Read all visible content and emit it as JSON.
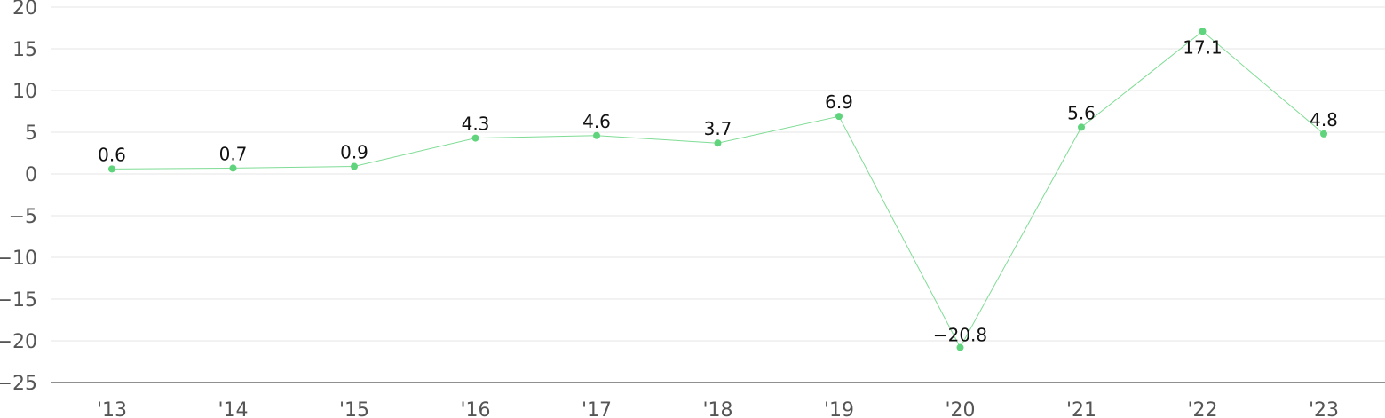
{
  "chart_data": {
    "type": "line",
    "categories": [
      "'13",
      "'14",
      "'15",
      "'16",
      "'17",
      "'18",
      "'19",
      "'20",
      "'21",
      "'22",
      "'23"
    ],
    "series": [
      {
        "values": [
          0.6,
          0.7,
          0.9,
          4.3,
          4.6,
          3.7,
          6.9,
          -20.8,
          5.6,
          17.1,
          4.8
        ]
      }
    ],
    "data_labels": [
      "0.6",
      "0.7",
      "0.9",
      "4.3",
      "4.6",
      "3.7",
      "6.9",
      "−20.8",
      "5.6",
      "17.1",
      "4.8"
    ],
    "yticks": [
      20,
      15,
      10,
      5,
      0,
      -5,
      -10,
      -15,
      -20,
      -25
    ],
    "ytick_labels": [
      "20",
      "15",
      "10",
      "5",
      "0",
      "−5",
      "−10",
      "−15",
      "−20",
      "−25"
    ],
    "ylim": [
      -25,
      20
    ],
    "grid": true,
    "colors": {
      "series": "#7fdc95",
      "marker": "#5fd47c"
    }
  }
}
